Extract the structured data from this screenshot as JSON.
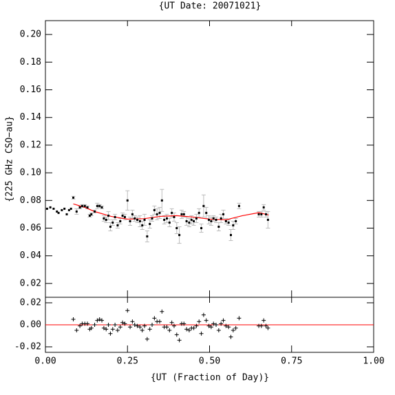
{
  "chart_data": [
    {
      "type": "scatter",
      "title": "{UT Date: 20071021}",
      "ylabel": "{225 GHz CSO−au}",
      "x": [
        0.005,
        0.015,
        0.025,
        0.035,
        0.04,
        0.05,
        0.058,
        0.065,
        0.072,
        0.078,
        0.085,
        0.095,
        0.105,
        0.112,
        0.12,
        0.128,
        0.135,
        0.14,
        0.15,
        0.158,
        0.165,
        0.172,
        0.178,
        0.185,
        0.192,
        0.198,
        0.205,
        0.212,
        0.22,
        0.228,
        0.235,
        0.242,
        0.25,
        0.258,
        0.265,
        0.272,
        0.28,
        0.288,
        0.295,
        0.302,
        0.31,
        0.318,
        0.325,
        0.332,
        0.34,
        0.348,
        0.355,
        0.362,
        0.37,
        0.378,
        0.385,
        0.392,
        0.4,
        0.408,
        0.415,
        0.422,
        0.43,
        0.438,
        0.445,
        0.452,
        0.46,
        0.468,
        0.475,
        0.482,
        0.49,
        0.498,
        0.505,
        0.512,
        0.52,
        0.528,
        0.535,
        0.542,
        0.55,
        0.558,
        0.565,
        0.572,
        0.58,
        0.59,
        0.65,
        0.658,
        0.665,
        0.672,
        0.678
      ],
      "values": [
        0.074,
        0.075,
        0.074,
        0.072,
        0.071,
        0.073,
        0.074,
        0.07,
        0.073,
        0.074,
        0.082,
        0.072,
        0.075,
        0.076,
        0.076,
        0.075,
        0.069,
        0.07,
        0.072,
        0.076,
        0.076,
        0.075,
        0.067,
        0.066,
        0.069,
        0.061,
        0.064,
        0.068,
        0.062,
        0.065,
        0.069,
        0.068,
        0.08,
        0.065,
        0.07,
        0.067,
        0.066,
        0.065,
        0.062,
        0.066,
        0.054,
        0.063,
        0.067,
        0.073,
        0.07,
        0.071,
        0.08,
        0.066,
        0.067,
        0.064,
        0.071,
        0.068,
        0.06,
        0.055,
        0.07,
        0.07,
        0.065,
        0.064,
        0.066,
        0.065,
        0.067,
        0.071,
        0.06,
        0.076,
        0.071,
        0.066,
        0.065,
        0.067,
        0.066,
        0.061,
        0.067,
        0.07,
        0.065,
        0.064,
        0.055,
        0.062,
        0.065,
        0.076,
        0.07,
        0.07,
        0.075,
        0.07,
        0.066
      ],
      "errors": [
        null,
        null,
        null,
        null,
        null,
        null,
        null,
        null,
        null,
        null,
        0.001,
        0.002,
        0.001,
        0.001,
        0.001,
        0.001,
        0.001,
        0.001,
        0.001,
        0.002,
        0.001,
        0.001,
        0.002,
        0.002,
        0.003,
        0.003,
        0.002,
        0.002,
        0.002,
        0.002,
        0.002,
        0.002,
        0.007,
        0.003,
        0.003,
        0.002,
        0.002,
        0.004,
        0.003,
        0.004,
        0.004,
        0.003,
        0.002,
        0.003,
        0.004,
        0.004,
        0.008,
        0.003,
        0.003,
        0.003,
        0.003,
        0.003,
        0.004,
        0.006,
        0.003,
        0.002,
        0.003,
        0.003,
        0.003,
        0.003,
        0.003,
        0.003,
        0.003,
        0.008,
        0.004,
        0.003,
        0.003,
        0.002,
        0.002,
        0.003,
        0.003,
        0.003,
        0.002,
        0.002,
        0.004,
        0.003,
        0.002,
        0.002,
        0.002,
        0.002,
        0.002,
        0.002,
        0.006
      ],
      "color": "#000000",
      "error_color": "#bbbbbb",
      "fit": {
        "x": [
          0.085,
          0.12,
          0.15,
          0.2,
          0.25,
          0.3,
          0.35,
          0.4,
          0.45,
          0.5,
          0.55,
          0.6,
          0.65,
          0.68
        ],
        "values": [
          0.0775,
          0.075,
          0.072,
          0.0685,
          0.0665,
          0.0668,
          0.0685,
          0.069,
          0.068,
          0.0665,
          0.066,
          0.069,
          0.0712,
          0.0695
        ],
        "color": "#ff0000"
      },
      "xlim": [
        0,
        1
      ],
      "ylim": [
        0.01,
        0.21
      ],
      "xticks": [
        0,
        0.25,
        0.5,
        0.75,
        1
      ],
      "yticks": [
        {
          "value": 0.02,
          "label": "0.02"
        },
        {
          "value": 0.04,
          "label": "0.04"
        },
        {
          "value": 0.06,
          "label": "0.06"
        },
        {
          "value": 0.08,
          "label": "0.08"
        },
        {
          "value": 0.1,
          "label": "0.10"
        },
        {
          "value": 0.12,
          "label": "0.12"
        },
        {
          "value": 0.14,
          "label": "0.14"
        },
        {
          "value": 0.16,
          "label": "0.16"
        },
        {
          "value": 0.18,
          "label": "0.18"
        },
        {
          "value": 0.2,
          "label": "0.20"
        }
      ]
    },
    {
      "type": "scatter",
      "xlabel": "{UT (Fraction of Day)}",
      "x": [
        0.085,
        0.095,
        0.105,
        0.112,
        0.12,
        0.128,
        0.135,
        0.14,
        0.15,
        0.158,
        0.165,
        0.172,
        0.178,
        0.185,
        0.192,
        0.198,
        0.205,
        0.212,
        0.22,
        0.228,
        0.235,
        0.242,
        0.25,
        0.258,
        0.265,
        0.272,
        0.28,
        0.288,
        0.295,
        0.302,
        0.31,
        0.318,
        0.325,
        0.332,
        0.34,
        0.348,
        0.355,
        0.362,
        0.37,
        0.378,
        0.385,
        0.392,
        0.4,
        0.408,
        0.415,
        0.422,
        0.43,
        0.438,
        0.445,
        0.452,
        0.46,
        0.468,
        0.475,
        0.482,
        0.49,
        0.498,
        0.505,
        0.512,
        0.52,
        0.528,
        0.535,
        0.542,
        0.55,
        0.558,
        0.565,
        0.572,
        0.58,
        0.59,
        0.65,
        0.658,
        0.665,
        0.672,
        0.678
      ],
      "values": [
        0.005,
        -0.005,
        -0.001,
        0.001,
        0.001,
        0.001,
        -0.004,
        -0.003,
        0,
        0.004,
        0.005,
        0.004,
        -0.003,
        -0.004,
        0,
        -0.008,
        -0.004,
        0,
        -0.005,
        -0.002,
        0.002,
        0.001,
        0.013,
        -0.002,
        0.003,
        0,
        -0.001,
        -0.002,
        -0.005,
        -0.001,
        -0.013,
        -0.004,
        0,
        0.006,
        0.003,
        0.003,
        0.012,
        -0.002,
        -0.002,
        -0.005,
        0.002,
        -0.001,
        -0.009,
        -0.014,
        0.001,
        0.001,
        -0.004,
        -0.005,
        -0.003,
        -0.003,
        -0.001,
        0.003,
        -0.008,
        0.009,
        0.004,
        -0.001,
        -0.002,
        0.001,
        0,
        -0.005,
        0.001,
        0.004,
        -0.001,
        -0.002,
        -0.011,
        -0.005,
        -0.003,
        0.006,
        -0.001,
        -0.001,
        0.004,
        -0.001,
        -0.003
      ],
      "color": "#000000",
      "hline": 0,
      "hline_color": "#ff0000",
      "xlim": [
        0,
        1
      ],
      "ylim": [
        -0.025,
        0.025
      ],
      "xticks": [
        {
          "value": 0,
          "label": "0.00"
        },
        {
          "value": 0.25,
          "label": "0.25"
        },
        {
          "value": 0.5,
          "label": "0.50"
        },
        {
          "value": 0.75,
          "label": "0.75"
        },
        {
          "value": 1,
          "label": "1.00"
        }
      ],
      "yticks": [
        {
          "value": -0.02,
          "label": "-0.02"
        },
        {
          "value": 0,
          "label": "0.00"
        },
        {
          "value": 0.02,
          "label": "0.02"
        }
      ]
    }
  ]
}
